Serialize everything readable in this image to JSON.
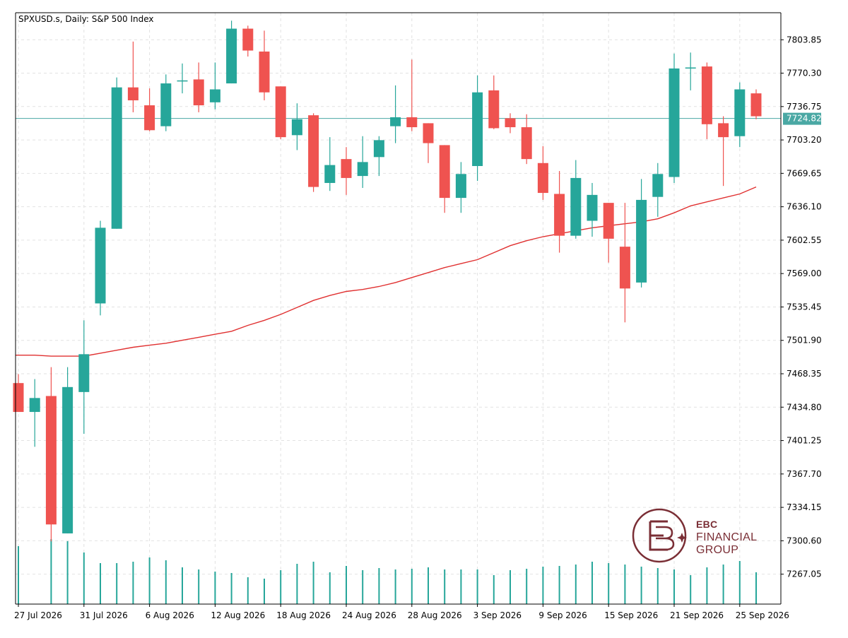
{
  "header": {
    "title": "SPXUSD.s, Daily:  S&P 500 Index"
  },
  "current_price": {
    "label": "7724.82",
    "value": 7724.82
  },
  "logo": {
    "line1": "EBC",
    "line2": "FINANCIAL",
    "line3": "GROUP"
  },
  "colors": {
    "bull": "#26a69a",
    "bear": "#ef5350",
    "ma": "#e03030",
    "price_line": "#4aa8a4",
    "grid": "#e2e2e2",
    "logo": "#7a2e35"
  },
  "chart_data": {
    "type": "candlestick",
    "title": "SPXUSD.s, Daily:  S&P 500 Index",
    "y_ticks": [
      "7803.85",
      "7770.30",
      "7736.75",
      "7703.20",
      "7669.65",
      "7636.10",
      "7602.55",
      "7569.00",
      "7535.45",
      "7501.90",
      "7468.35",
      "7434.80",
      "7401.25",
      "7367.70",
      "7334.15",
      "7300.60",
      "7267.05"
    ],
    "x_ticks": [
      "27 Jul 2026",
      "31 Jul 2026",
      "6 Aug 2026",
      "12 Aug 2026",
      "18 Aug 2026",
      "24 Aug 2026",
      "28 Aug 2026",
      "3 Sep 2026",
      "9 Sep 2026",
      "15 Sep 2026",
      "21 Sep 2026",
      "25 Sep 2026"
    ],
    "x_tick_candle_index": [
      0,
      4,
      8,
      12,
      16,
      20,
      24,
      28,
      32,
      36,
      40,
      44
    ],
    "ylim": [
      7237,
      7831
    ],
    "grid": true,
    "candles": [
      {
        "o": 7459,
        "h": 7468,
        "l": 7430,
        "c": 7430
      },
      {
        "o": 7430,
        "h": 7463,
        "l": 7395,
        "c": 7444
      },
      {
        "o": 7446,
        "h": 7475,
        "l": 7300,
        "c": 7317
      },
      {
        "o": 7308,
        "h": 7475,
        "l": 7308,
        "c": 7455
      },
      {
        "o": 7450,
        "h": 7522,
        "l": 7408,
        "c": 7488
      },
      {
        "o": 7539,
        "h": 7622,
        "l": 7527,
        "c": 7615
      },
      {
        "o": 7614,
        "h": 7766,
        "l": 7614,
        "c": 7756
      },
      {
        "o": 7756,
        "h": 7802,
        "l": 7731,
        "c": 7743
      },
      {
        "o": 7738,
        "h": 7755,
        "l": 7712,
        "c": 7713
      },
      {
        "o": 7717,
        "h": 7769,
        "l": 7712,
        "c": 7760
      },
      {
        "o": 7763,
        "h": 7780,
        "l": 7750,
        "c": 7763
      },
      {
        "o": 7764,
        "h": 7781,
        "l": 7731,
        "c": 7738
      },
      {
        "o": 7741,
        "h": 7781,
        "l": 7734,
        "c": 7754
      },
      {
        "o": 7760,
        "h": 7823,
        "l": 7760,
        "c": 7815
      },
      {
        "o": 7815,
        "h": 7818,
        "l": 7787,
        "c": 7793
      },
      {
        "o": 7792,
        "h": 7813,
        "l": 7743,
        "c": 7751
      },
      {
        "o": 7757,
        "h": 7757,
        "l": 7704,
        "c": 7706
      },
      {
        "o": 7708,
        "h": 7740,
        "l": 7693,
        "c": 7724
      },
      {
        "o": 7728,
        "h": 7730,
        "l": 7651,
        "c": 7656
      },
      {
        "o": 7660,
        "h": 7706,
        "l": 7652,
        "c": 7678
      },
      {
        "o": 7684,
        "h": 7696,
        "l": 7648,
        "c": 7665
      },
      {
        "o": 7667,
        "h": 7707,
        "l": 7655,
        "c": 7681
      },
      {
        "o": 7686,
        "h": 7707,
        "l": 7667,
        "c": 7703
      },
      {
        "o": 7717,
        "h": 7758,
        "l": 7700,
        "c": 7726
      },
      {
        "o": 7726,
        "h": 7784,
        "l": 7712,
        "c": 7716
      },
      {
        "o": 7720,
        "h": 7720,
        "l": 7680,
        "c": 7700
      },
      {
        "o": 7698,
        "h": 7698,
        "l": 7630,
        "c": 7645
      },
      {
        "o": 7645,
        "h": 7681,
        "l": 7630,
        "c": 7669
      },
      {
        "o": 7677,
        "h": 7768,
        "l": 7662,
        "c": 7751
      },
      {
        "o": 7753,
        "h": 7768,
        "l": 7714,
        "c": 7715
      },
      {
        "o": 7725,
        "h": 7730,
        "l": 7710,
        "c": 7716
      },
      {
        "o": 7716,
        "h": 7729,
        "l": 7679,
        "c": 7684
      },
      {
        "o": 7680,
        "h": 7697,
        "l": 7643,
        "c": 7650
      },
      {
        "o": 7649,
        "h": 7672,
        "l": 7590,
        "c": 7607
      },
      {
        "o": 7607,
        "h": 7683,
        "l": 7604,
        "c": 7665
      },
      {
        "o": 7622,
        "h": 7660,
        "l": 7606,
        "c": 7648
      },
      {
        "o": 7640,
        "h": 7640,
        "l": 7580,
        "c": 7604
      },
      {
        "o": 7596,
        "h": 7640,
        "l": 7520,
        "c": 7554
      },
      {
        "o": 7560,
        "h": 7664,
        "l": 7555,
        "c": 7643
      },
      {
        "o": 7646,
        "h": 7680,
        "l": 7626,
        "c": 7669
      },
      {
        "o": 7666,
        "h": 7790,
        "l": 7660,
        "c": 7775
      },
      {
        "o": 7776,
        "h": 7791,
        "l": 7753,
        "c": 7776
      },
      {
        "o": 7777,
        "h": 7781,
        "l": 7704,
        "c": 7719
      },
      {
        "o": 7720,
        "h": 7727,
        "l": 7657,
        "c": 7706
      },
      {
        "o": 7707,
        "h": 7761,
        "l": 7696,
        "c": 7754
      },
      {
        "o": 7750,
        "h": 7754,
        "l": 7724,
        "c": 7727
      }
    ],
    "moving_average": [
      7487,
      7487,
      7486,
      7486,
      7486,
      7489,
      7492,
      7495,
      7497,
      7499,
      7502,
      7505,
      7508,
      7511,
      7517,
      7522,
      7528,
      7535,
      7542,
      7547,
      7551,
      7553,
      7556,
      7560,
      7565,
      7570,
      7575,
      7579,
      7583,
      7590,
      7597,
      7602,
      7606,
      7609,
      7612,
      7615,
      7617,
      7619,
      7621,
      7624,
      7630,
      7637,
      7641,
      7645,
      7649,
      7656
    ],
    "volume": [
      82,
      0,
      92,
      89,
      73,
      58,
      58,
      60,
      66,
      62,
      52,
      49,
      46,
      44,
      38,
      36,
      48,
      57,
      60,
      45,
      54,
      48,
      51,
      49,
      50,
      52,
      49,
      49,
      49,
      41,
      48,
      50,
      53,
      54,
      56,
      60,
      58,
      56,
      53,
      51,
      49,
      41,
      52,
      56,
      61,
      45
    ]
  }
}
